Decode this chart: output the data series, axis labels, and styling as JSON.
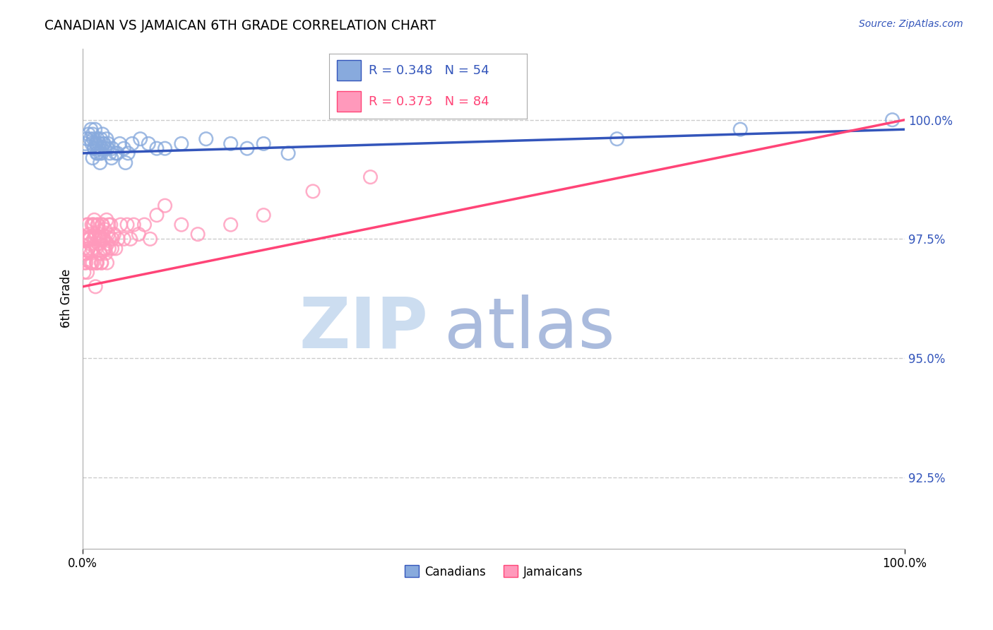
{
  "title": "CANADIAN VS JAMAICAN 6TH GRADE CORRELATION CHART",
  "source": "Source: ZipAtlas.com",
  "ylabel": "6th Grade",
  "ytick_values": [
    92.5,
    95.0,
    97.5,
    100.0
  ],
  "xlim": [
    0.0,
    100.0
  ],
  "ylim": [
    91.0,
    101.5
  ],
  "legend_labels": [
    "Canadians",
    "Jamaicans"
  ],
  "r_canadian": 0.348,
  "n_canadian": 54,
  "r_jamaican": 0.373,
  "n_jamaican": 84,
  "color_canadian": "#88AADD",
  "color_jamaican": "#FF99BB",
  "trendline_canadian_color": "#3355BB",
  "trendline_jamaican_color": "#FF4477",
  "canadian_x": [
    0.3,
    0.5,
    0.7,
    0.9,
    1.0,
    1.1,
    1.2,
    1.3,
    1.4,
    1.5,
    1.6,
    1.7,
    1.8,
    1.9,
    2.0,
    2.1,
    2.2,
    2.3,
    2.4,
    2.5,
    2.7,
    2.9,
    3.1,
    3.3,
    3.6,
    4.0,
    4.5,
    5.0,
    5.5,
    6.0,
    7.0,
    8.0,
    10.0,
    12.0,
    15.0,
    20.0,
    22.0,
    25.0,
    65.0,
    80.0,
    98.5,
    1.2,
    1.4,
    1.6,
    1.8,
    2.1,
    2.3,
    2.6,
    3.0,
    3.5,
    4.2,
    5.2,
    9.0,
    18.0
  ],
  "canadian_y": [
    99.5,
    99.6,
    99.7,
    99.6,
    99.8,
    99.5,
    99.7,
    99.6,
    99.4,
    99.8,
    99.5,
    99.3,
    99.6,
    99.4,
    99.5,
    99.3,
    99.6,
    99.4,
    99.7,
    99.5,
    99.4,
    99.6,
    99.5,
    99.3,
    99.4,
    99.3,
    99.5,
    99.4,
    99.3,
    99.5,
    99.6,
    99.5,
    99.4,
    99.5,
    99.6,
    99.4,
    99.5,
    99.3,
    99.6,
    99.8,
    100.0,
    99.2,
    99.4,
    99.5,
    99.3,
    99.1,
    99.3,
    99.5,
    99.4,
    99.2,
    99.3,
    99.1,
    99.4,
    99.5
  ],
  "jamaican_x": [
    0.1,
    0.2,
    0.3,
    0.4,
    0.5,
    0.6,
    0.7,
    0.8,
    0.9,
    1.0,
    1.1,
    1.2,
    1.3,
    1.4,
    1.5,
    1.6,
    1.7,
    1.8,
    1.9,
    2.0,
    2.1,
    2.2,
    2.3,
    2.4,
    2.5,
    2.6,
    2.7,
    2.8,
    2.9,
    3.0,
    3.1,
    3.2,
    3.4,
    3.6,
    3.8,
    4.0,
    4.3,
    4.6,
    5.0,
    5.4,
    5.8,
    6.2,
    6.8,
    7.5,
    8.2,
    9.0,
    10.0,
    12.0,
    14.0,
    18.0,
    22.0,
    28.0,
    35.0,
    0.15,
    0.25,
    0.35,
    0.55,
    0.75,
    0.95,
    1.15,
    1.35,
    1.55,
    1.75,
    1.95,
    2.15,
    2.35,
    2.55,
    2.75,
    2.95,
    3.25,
    3.55,
    0.45,
    0.65,
    0.85,
    1.05,
    1.25,
    1.45,
    1.65,
    1.85,
    2.05,
    2.25,
    2.45,
    2.65,
    3.15
  ],
  "jamaican_y": [
    97.3,
    97.5,
    97.2,
    97.0,
    97.8,
    97.5,
    97.3,
    97.6,
    97.4,
    97.2,
    97.8,
    97.0,
    97.5,
    97.9,
    97.6,
    97.3,
    97.0,
    97.8,
    97.4,
    97.6,
    97.2,
    97.5,
    97.0,
    97.8,
    97.3,
    97.5,
    97.7,
    97.2,
    97.9,
    97.4,
    97.6,
    97.3,
    97.8,
    97.5,
    97.6,
    97.3,
    97.5,
    97.8,
    97.5,
    97.8,
    97.5,
    97.8,
    97.6,
    97.8,
    97.5,
    98.0,
    98.2,
    97.8,
    97.6,
    97.8,
    98.0,
    98.5,
    98.8,
    96.8,
    97.0,
    97.2,
    96.8,
    97.5,
    97.0,
    97.3,
    97.8,
    96.5,
    97.0,
    97.5,
    97.2,
    97.8,
    97.5,
    97.3,
    97.0,
    97.5,
    97.3,
    97.2,
    97.8,
    97.5,
    97.0,
    97.8,
    97.5,
    97.0,
    97.8,
    97.5,
    97.0,
    97.5,
    97.3,
    97.8
  ],
  "trendline_canadian_x0": 0.0,
  "trendline_canadian_y0": 99.3,
  "trendline_canadian_x1": 100.0,
  "trendline_canadian_y1": 99.8,
  "trendline_jamaican_x0": 0.0,
  "trendline_jamaican_y0": 96.5,
  "trendline_jamaican_x1": 100.0,
  "trendline_jamaican_y1": 100.0,
  "watermark_zip_color": "#ccddf0",
  "watermark_atlas_color": "#aabbdd",
  "background_color": "#ffffff",
  "grid_color": "#cccccc"
}
